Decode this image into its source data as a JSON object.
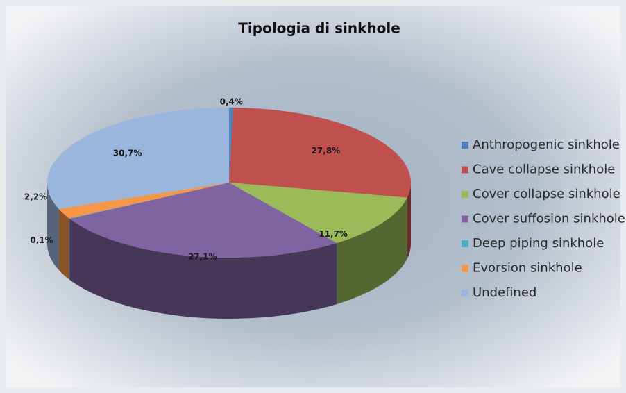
{
  "chart_data": {
    "type": "pie3d",
    "title": "Tipologia di sinkhole",
    "categories": [
      "Anthropogenic sinkhole",
      "Cave collapse sinkhole",
      "Cover collapse sinkhole",
      "Cover suffosion sinkhole",
      "Deep piping sinkhole",
      "Evorsion sinkhole",
      "Undefined"
    ],
    "values": [
      0.4,
      27.8,
      11.7,
      27.1,
      0.1,
      2.2,
      30.7
    ],
    "value_labels": [
      "0,4%",
      "27,8%",
      "11,7%",
      "27,1%",
      "0,1%",
      "2,2%",
      "30,7%"
    ],
    "colors": [
      "#4f81bd",
      "#c0504d",
      "#9bbb59",
      "#8064a2",
      "#4bacc6",
      "#f79646",
      "#9ab6dd"
    ],
    "legend": "right"
  }
}
